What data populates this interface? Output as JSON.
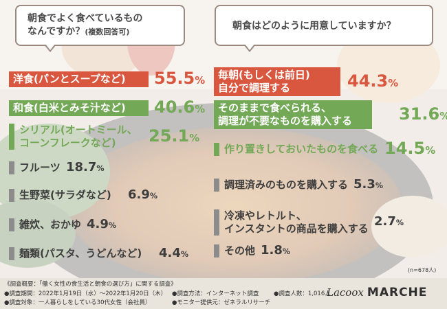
{
  "colors": {
    "orange": "#d9573f",
    "green": "#72a856",
    "grey": "#8c8c8c"
  },
  "questions": {
    "left": {
      "line1": "朝食でよく食べているもの",
      "line2": "なんですか？",
      "note": "(複数回答可)"
    },
    "right": {
      "text": "朝食はどのように用意していますか？"
    }
  },
  "chart_data": [
    {
      "type": "bar",
      "title": "朝食でよく食べているものなんですか？(複数回答可)",
      "unit": "%",
      "categories": [
        [
          "洋食(パンとスープなど)"
        ],
        [
          "和食(白米とみそ汁など)"
        ],
        [
          "シリアル(オートミール、",
          "コーンフレークなど)"
        ],
        [
          "フルーツ"
        ],
        [
          "生野菜(サラダなど)"
        ],
        [
          "雑炊、おかゆ"
        ],
        [
          "麺類(パスタ、うどんなど)"
        ]
      ],
      "values": [
        55.5,
        40.6,
        25.1,
        18.7,
        6.9,
        4.9,
        4.4
      ]
    },
    {
      "type": "bar",
      "title": "朝食はどのように用意していますか？",
      "unit": "%",
      "categories": [
        [
          "毎朝(もしくは前日)",
          "自分で調理する"
        ],
        [
          "そのままで食べられる、",
          "調理が不要なものを購入する"
        ],
        [
          "作り置きしておいたものを食べる"
        ],
        [
          "調理済みのものを購入する"
        ],
        [
          "冷凍やレトルト、",
          "インスタントの商品を購入する"
        ],
        [
          "その他"
        ]
      ],
      "values": [
        44.3,
        31.6,
        14.5,
        5.3,
        2.7,
        1.8
      ]
    }
  ],
  "sample_note": "(n=678人)",
  "footer": {
    "overview": "《調査概要：「働く女性の食生活と朝食の選び方」に関する調査》",
    "period": "●調査期間：2022年1月19日（水）〜2022年1月20日（木）",
    "target": "●調査対象：一人暮らしをしている30代女性（会社員）",
    "method": "●調査方法：インターネット調査",
    "provider": "●モニター提供元：ゼネラルリサーチ",
    "count": "●調査人数：1,016人"
  },
  "logo": {
    "script": "Lacoox",
    "bold": "MARCHE"
  }
}
